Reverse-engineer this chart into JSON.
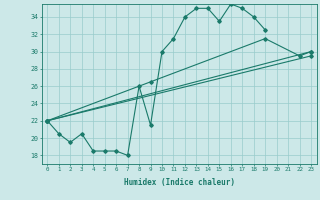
{
  "xlabel": "Humidex (Indice chaleur)",
  "background_color": "#cce8e8",
  "grid_color": "#99cccc",
  "line_color": "#1a7a6a",
  "xlim": [
    -0.5,
    23.5
  ],
  "ylim": [
    17.0,
    35.5
  ],
  "yticks": [
    18,
    20,
    22,
    24,
    26,
    28,
    30,
    32,
    34
  ],
  "xticks": [
    0,
    1,
    2,
    3,
    4,
    5,
    6,
    7,
    8,
    9,
    10,
    11,
    12,
    13,
    14,
    15,
    16,
    17,
    18,
    19,
    20,
    21,
    22,
    23
  ],
  "series": [
    {
      "x": [
        0,
        1,
        2,
        3,
        4,
        5,
        6,
        7,
        8,
        9,
        10,
        11,
        12,
        13,
        14,
        15,
        16,
        17,
        18,
        19
      ],
      "y": [
        22,
        20.5,
        19.5,
        20.5,
        18.5,
        18.5,
        18.5,
        18,
        26,
        21.5,
        30,
        31.5,
        34,
        35,
        35,
        33.5,
        35.5,
        35,
        34,
        32.5
      ]
    },
    {
      "x": [
        0,
        23
      ],
      "y": [
        22,
        29.5
      ]
    },
    {
      "x": [
        0,
        23
      ],
      "y": [
        22,
        30.0
      ]
    },
    {
      "x": [
        0,
        9,
        19,
        22,
        23
      ],
      "y": [
        22,
        26.5,
        31.5,
        29.5,
        30.0
      ]
    }
  ]
}
